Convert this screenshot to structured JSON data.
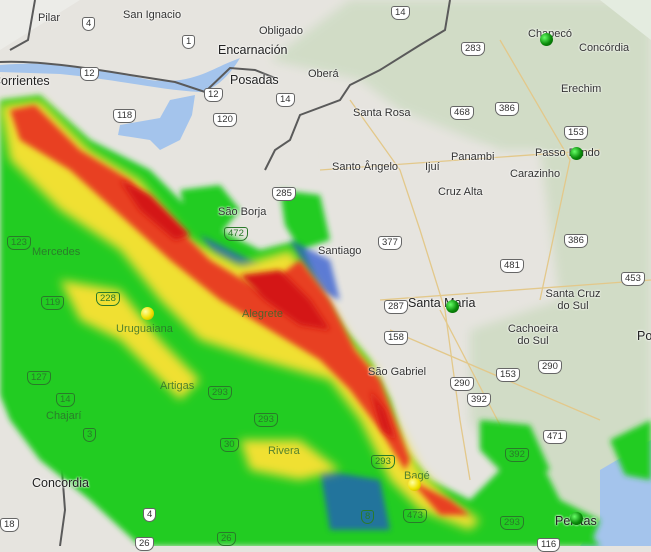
{
  "map": {
    "cities": [
      {
        "name": "Pilar"
      },
      {
        "name": "San Ignacio"
      },
      {
        "name": "Obligado"
      },
      {
        "name": "Encarnación"
      },
      {
        "name": "Posadas"
      },
      {
        "name": "Oberá"
      },
      {
        "name": "Corrientes"
      },
      {
        "name": "Santa Rosa"
      },
      {
        "name": "Santo Ângelo"
      },
      {
        "name": "Ijuí"
      },
      {
        "name": "Panambi"
      },
      {
        "name": "Cruz Alta"
      },
      {
        "name": "Carazinho"
      },
      {
        "name": "Passo Fundo"
      },
      {
        "name": "Erechim"
      },
      {
        "name": "Chapecó"
      },
      {
        "name": "Concórdia"
      },
      {
        "name": "São Borja"
      },
      {
        "name": "Santiago"
      },
      {
        "name": "Santa Maria"
      },
      {
        "name": "Santa Cruz do Sul"
      },
      {
        "name": "Cachoeira do Sul"
      },
      {
        "name": "São Gabriel"
      },
      {
        "name": "Alegrete"
      },
      {
        "name": "Uruguaiana"
      },
      {
        "name": "Mercedes"
      },
      {
        "name": "Artigas"
      },
      {
        "name": "Rivera"
      },
      {
        "name": "Chajarí"
      },
      {
        "name": "Concordia"
      },
      {
        "name": "Bagé"
      },
      {
        "name": "Pelotas"
      },
      {
        "name": "Po"
      }
    ],
    "routes": [
      "4",
      "1",
      "12",
      "12",
      "14",
      "118",
      "120",
      "283",
      "14",
      "468",
      "386",
      "153",
      "285",
      "472",
      "377",
      "481",
      "386",
      "453",
      "123",
      "119",
      "228",
      "287",
      "158",
      "290",
      "153",
      "392",
      "290",
      "471",
      "293",
      "293",
      "127",
      "14",
      "3",
      "30",
      "293",
      "473",
      "392",
      "293",
      "4",
      "26",
      "26",
      "18",
      "116",
      "8"
    ],
    "markers": [
      {
        "type": "station",
        "color": "#0a8a0a",
        "near": "Chapecó"
      },
      {
        "type": "station",
        "color": "#0a8a0a",
        "near": "Passo Fundo"
      },
      {
        "type": "station",
        "color": "#0a8a0a",
        "near": "Santa Maria"
      },
      {
        "type": "station",
        "color": "#0a8a0a",
        "near": "Pelotas"
      },
      {
        "type": "station",
        "color": "#f0e000",
        "near": "Uruguaiana"
      },
      {
        "type": "station",
        "color": "#f0e000",
        "near": "Bagé"
      }
    ],
    "radar_colors": {
      "light": "#22cc22",
      "moderate": "#f0e030",
      "heavy": "#e83020",
      "intense": "#cc1010",
      "weak": "#2050d0"
    }
  }
}
